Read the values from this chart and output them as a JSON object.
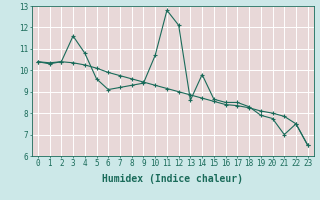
{
  "xlabel": "Humidex (Indice chaleur)",
  "bg_color": "#cce8e8",
  "plot_bg_color": "#e8d8d8",
  "grid_color": "#ffffff",
  "line_color": "#1a6b5a",
  "spine_color": "#1a6b5a",
  "xlim": [
    -0.5,
    23.5
  ],
  "ylim": [
    6,
    13
  ],
  "xticks": [
    0,
    1,
    2,
    3,
    4,
    5,
    6,
    7,
    8,
    9,
    10,
    11,
    12,
    13,
    14,
    15,
    16,
    17,
    18,
    19,
    20,
    21,
    22,
    23
  ],
  "yticks": [
    6,
    7,
    8,
    9,
    10,
    11,
    12,
    13
  ],
  "series1_x": [
    0,
    1,
    2,
    3,
    4,
    5,
    6,
    7,
    8,
    9,
    10,
    11,
    12,
    13,
    14,
    15,
    16,
    17,
    18,
    19,
    20,
    21,
    22,
    23
  ],
  "series1_y": [
    10.4,
    10.3,
    10.4,
    11.6,
    10.8,
    9.6,
    9.1,
    9.2,
    9.3,
    9.4,
    10.7,
    12.8,
    12.1,
    8.6,
    9.8,
    8.65,
    8.5,
    8.5,
    8.3,
    7.9,
    7.75,
    7.0,
    7.5,
    6.5
  ],
  "series2_x": [
    0,
    1,
    2,
    3,
    4,
    5,
    6,
    7,
    8,
    9,
    10,
    11,
    12,
    13,
    14,
    15,
    16,
    17,
    18,
    19,
    20,
    21,
    22,
    23
  ],
  "series2_y": [
    10.4,
    10.35,
    10.4,
    10.35,
    10.25,
    10.1,
    9.9,
    9.75,
    9.6,
    9.45,
    9.3,
    9.15,
    9.0,
    8.85,
    8.7,
    8.55,
    8.4,
    8.35,
    8.25,
    8.1,
    8.0,
    7.85,
    7.5,
    6.5
  ],
  "marker": "+",
  "markersize": 3,
  "linewidth": 0.8,
  "xlabel_fontsize": 7,
  "tick_fontsize": 5.5
}
